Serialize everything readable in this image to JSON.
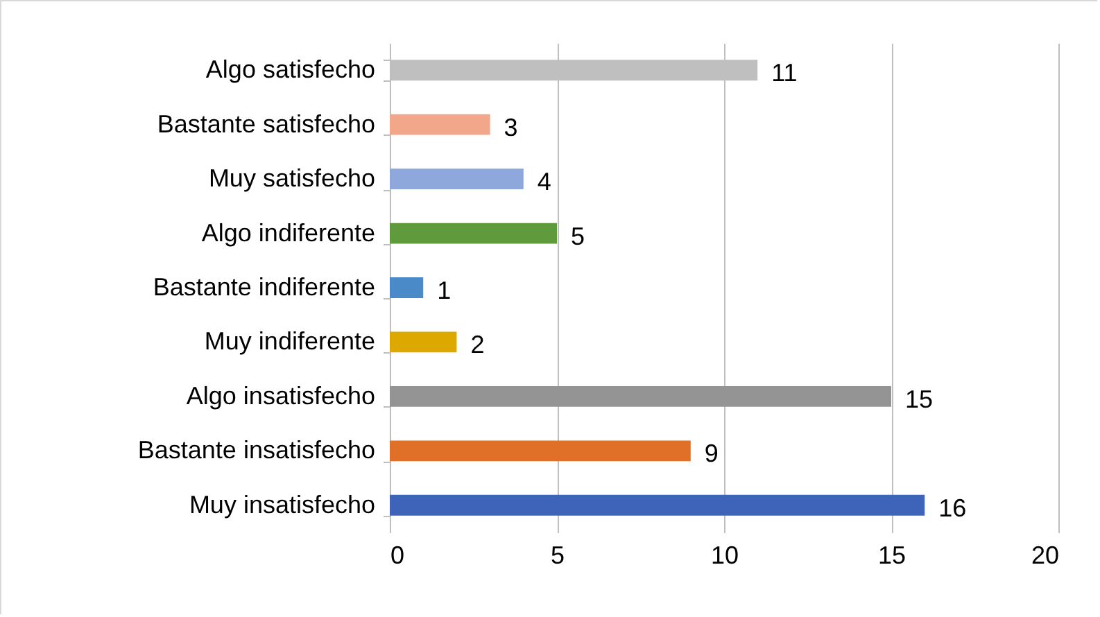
{
  "chart_data": {
    "type": "bar",
    "orientation": "horizontal",
    "categories": [
      "Algo satisfecho",
      "Bastante satisfecho",
      "Muy satisfecho",
      "Algo indiferente",
      "Bastante indiferente",
      "Muy indiferente",
      "Algo insatisfecho",
      "Bastante insatisfecho",
      "Muy insatisfecho"
    ],
    "values": [
      11,
      3,
      4,
      5,
      1,
      2,
      15,
      9,
      16
    ],
    "colors": [
      "#bfbfbf",
      "#f2a68a",
      "#8fa8dc",
      "#5f9a3c",
      "#4a8ac8",
      "#dda800",
      "#949494",
      "#e07028",
      "#3d64b8"
    ],
    "xlim": [
      0,
      20
    ],
    "xticks": [
      0,
      5,
      10,
      15,
      20
    ],
    "grid": "x",
    "data_labels": true
  }
}
